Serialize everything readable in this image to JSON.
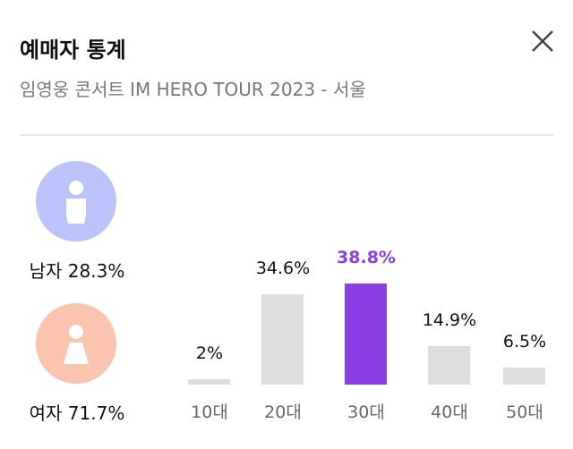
{
  "header": {
    "title": "예매자 통계",
    "subtitle": "임영웅 콘서트 IM HERO TOUR 2023 - 서울",
    "close_icon": "close-icon"
  },
  "gender": [
    {
      "label": "남자 28.3%",
      "color": "#bcc3fb",
      "icon": "male-person-icon"
    },
    {
      "label": "여자 71.7%",
      "color": "#fbc4ae",
      "icon": "female-person-icon"
    }
  ],
  "chart_data": {
    "type": "bar",
    "categories": [
      "10대",
      "20대",
      "30대",
      "40대",
      "50대"
    ],
    "values": [
      2,
      34.6,
      38.8,
      14.9,
      6.5
    ],
    "labels": [
      "2%",
      "34.6%",
      "38.8%",
      "14.9%",
      "6.5%"
    ],
    "highlight_index": 2,
    "colors": {
      "default": "#dedede",
      "highlight": "#8b3fe3",
      "highlight_text": "#8b3fe3"
    }
  }
}
